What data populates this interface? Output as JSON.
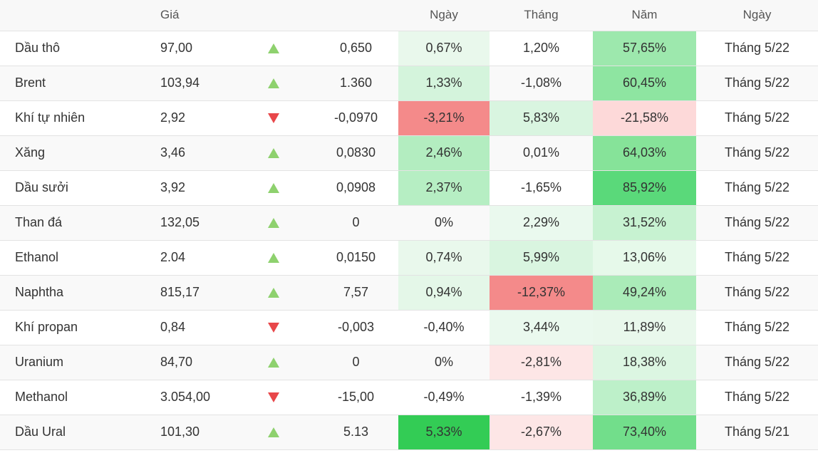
{
  "headers": {
    "name": "",
    "price": "Giá",
    "arrow": "",
    "change": "",
    "day": "Ngày",
    "month": "Tháng",
    "year": "Năm",
    "date": "Ngày"
  },
  "rows": [
    {
      "name": "Dầu thô",
      "price": "97,00",
      "direction": "up",
      "change": "0,650",
      "day": "0,67%",
      "day_bg": "#e9f8ec",
      "month": "1,20%",
      "month_bg": "",
      "year": "57,65%",
      "year_bg": "#9de8ad",
      "date": "Tháng 5/22"
    },
    {
      "name": "Brent",
      "price": "103,94",
      "direction": "up",
      "change": "1.360",
      "day": "1,33%",
      "day_bg": "#d4f4dc",
      "month": "-1,08%",
      "month_bg": "",
      "year": "60,45%",
      "year_bg": "#8ee5a1",
      "date": "Tháng 5/22"
    },
    {
      "name": "Khí tự nhiên",
      "price": "2,92",
      "direction": "down",
      "change": "-0,0970",
      "day": "-3,21%",
      "day_bg": "#f48a8a",
      "month": "5,83%",
      "month_bg": "#d9f5e0",
      "year": "-21,58%",
      "year_bg": "#fdd9d9",
      "date": "Tháng 5/22"
    },
    {
      "name": "Xăng",
      "price": "3,46",
      "direction": "up",
      "change": "0,0830",
      "day": "2,46%",
      "day_bg": "#b3edc0",
      "month": "0,01%",
      "month_bg": "",
      "year": "64,03%",
      "year_bg": "#86e399",
      "date": "Tháng 5/22"
    },
    {
      "name": "Dầu sưởi",
      "price": "3,92",
      "direction": "up",
      "change": "0,0908",
      "day": "2,37%",
      "day_bg": "#b6eec3",
      "month": "-1,65%",
      "month_bg": "",
      "year": "85,92%",
      "year_bg": "#5ad97a",
      "date": "Tháng 5/22"
    },
    {
      "name": "Than đá",
      "price": "132,05",
      "direction": "up",
      "change": "0",
      "day": "0%",
      "day_bg": "",
      "month": "2,29%",
      "month_bg": "#eaf9ee",
      "year": "31,52%",
      "year_bg": "#c7f2d1",
      "date": "Tháng 5/22"
    },
    {
      "name": "Ethanol",
      "price": "2.04",
      "direction": "up",
      "change": "0,0150",
      "day": "0,74%",
      "day_bg": "#e9f8ec",
      "month": "5,99%",
      "month_bg": "#d9f5e0",
      "year": "13,06%",
      "year_bg": "#e6f9ea",
      "date": "Tháng 5/22"
    },
    {
      "name": "Naphtha",
      "price": "815,17",
      "direction": "up",
      "change": "7,57",
      "day": "0,94%",
      "day_bg": "#e4f7e8",
      "month": "-12,37%",
      "month_bg": "#f48a8a",
      "year": "49,24%",
      "year_bg": "#aaebb8",
      "date": "Tháng 5/22"
    },
    {
      "name": "Khí propan",
      "price": "0,84",
      "direction": "down",
      "change": "-0,003",
      "day": "-0,40%",
      "day_bg": "",
      "month": "3,44%",
      "month_bg": "#eaf9ee",
      "year": "11,89%",
      "year_bg": "#e9f8ec",
      "date": "Tháng 5/22"
    },
    {
      "name": "Uranium",
      "price": "84,70",
      "direction": "up",
      "change": "0",
      "day": "0%",
      "day_bg": "",
      "month": "-2,81%",
      "month_bg": "#fde6e6",
      "year": "18,38%",
      "year_bg": "#dcf6e2",
      "date": "Tháng 5/22"
    },
    {
      "name": "Methanol",
      "price": "3.054,00",
      "direction": "down",
      "change": "-15,00",
      "day": "-0,49%",
      "day_bg": "",
      "month": "-1,39%",
      "month_bg": "",
      "year": "36,89%",
      "year_bg": "#bdf0c9",
      "date": "Tháng 5/22"
    },
    {
      "name": "Dầu Ural",
      "price": "101,30",
      "direction": "up",
      "change": "5.13",
      "day": "5,33%",
      "day_bg": "#33cc55",
      "month": "-2,67%",
      "month_bg": "#fde6e6",
      "year": "73,40%",
      "year_bg": "#72de8b",
      "date": "Tháng 5/21"
    }
  ]
}
